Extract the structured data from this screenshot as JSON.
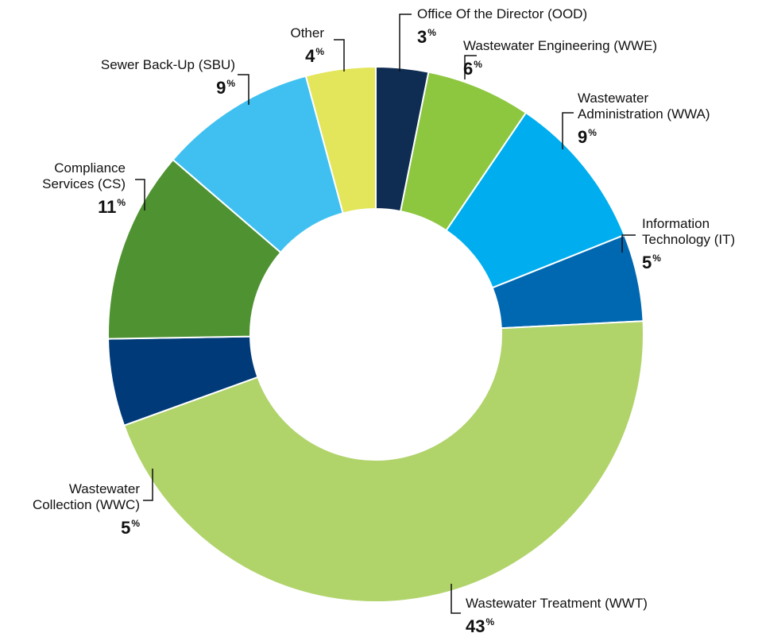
{
  "chart_data": {
    "type": "donut",
    "categories": [
      "Office Of the Director (OOD)",
      "Wastewater Engineering (WWE)",
      "Wastewater\nAdministration (WWA)",
      "Information\nTechnology (IT)",
      "Wastewater Treatment (WWT)",
      "Wastewater\nCollection (WWC)",
      "Compliance\nServices (CS)",
      "Sewer Back-Up (SBU)",
      "Other"
    ],
    "values": [
      3,
      6,
      9,
      5,
      43,
      5,
      11,
      9,
      4
    ],
    "value_suffix": "%",
    "colors": [
      "#0f2d52",
      "#8dc63f",
      "#00aeef",
      "#0067b1",
      "#b0d36a",
      "#003a78",
      "#4f9232",
      "#40c0f0",
      "#e3e55a"
    ]
  }
}
